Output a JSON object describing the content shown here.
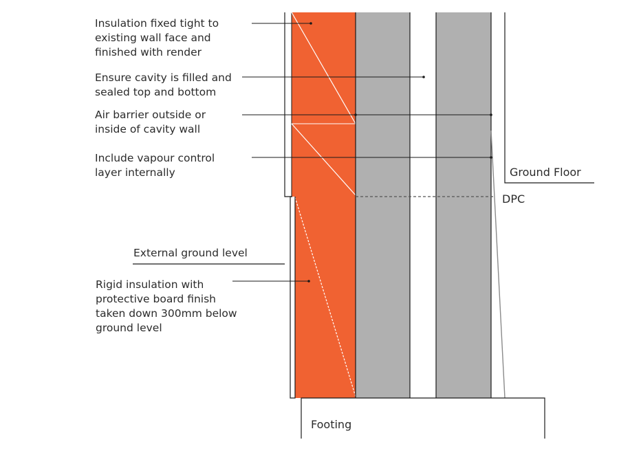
{
  "colors": {
    "insulation": "#f06232",
    "masonry": "#b0b0b0",
    "line": "#1a1a1a",
    "text": "#2b2b2b",
    "background": "#ffffff"
  },
  "annotations": {
    "insulation_render": [
      "Insulation fixed tight to",
      "existing wall face and",
      "finished with render"
    ],
    "cavity_fill": [
      "Ensure cavity is filled and",
      "sealed top and bottom"
    ],
    "air_barrier": [
      "Air barrier outside or",
      "inside of cavity wall"
    ],
    "vapour_control": [
      "Include vapour control",
      "layer internally"
    ],
    "external_ground": [
      "External ground level"
    ],
    "rigid_insulation": [
      "Rigid insulation with",
      "protective board finish",
      "taken down 300mm below",
      "ground level"
    ]
  },
  "labels": {
    "ground_floor": "Ground Floor",
    "dpc": "DPC",
    "footing": "Footing"
  }
}
